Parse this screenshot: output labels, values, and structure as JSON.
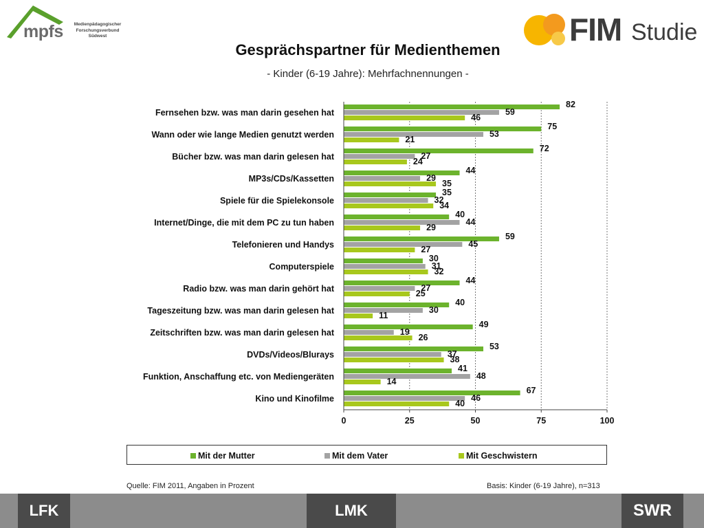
{
  "header": {
    "left_logo": {
      "name": "mpfs",
      "subtitle_lines": [
        "Medienpädagogischer",
        "Forschungsverbund",
        "Südwest"
      ]
    },
    "right_logo": {
      "name_bold": "FIM",
      "name_light": "Studie"
    }
  },
  "title": "Gesprächspartner für Medienthemen",
  "subtitle": "- Kinder (6-19 Jahre): Mehrfachnennungen -",
  "colors": {
    "mutter": "#6cb32d",
    "vater": "#a3a3a3",
    "geschwister": "#a8c81d",
    "accent_orange": "#f5a623",
    "bar_dark": "#4a4a4a"
  },
  "chart_data": {
    "type": "bar",
    "orientation": "horizontal",
    "categories": [
      "Fernsehen bzw. was man darin gesehen hat",
      "Wann oder wie lange Medien genutzt werden",
      "Bücher bzw. was man darin gelesen hat",
      "MP3s/CDs/Kassetten",
      "Spiele für die Spielekonsole",
      "Internet/Dinge, die mit dem PC zu tun haben",
      "Telefonieren und Handys",
      "Computerspiele",
      "Radio bzw. was man darin gehört hat",
      "Tageszeitung bzw. was man darin gelesen hat",
      "Zeitschriften bzw. was man darin gelesen hat",
      "DVDs/Videos/Blurays",
      "Funktion, Anschaffung etc. von Mediengeräten",
      "Kino und Kinofilme"
    ],
    "series": [
      {
        "name": "Mit der Mutter",
        "values": [
          82,
          75,
          72,
          44,
          35,
          40,
          59,
          30,
          44,
          40,
          49,
          53,
          41,
          67
        ]
      },
      {
        "name": "Mit dem Vater",
        "values": [
          59,
          53,
          27,
          29,
          32,
          44,
          45,
          31,
          27,
          30,
          19,
          37,
          48,
          46
        ]
      },
      {
        "name": "Mit Geschwistern",
        "values": [
          46,
          21,
          24,
          35,
          34,
          29,
          27,
          32,
          25,
          11,
          26,
          38,
          14,
          40
        ]
      }
    ],
    "xlim": [
      0,
      100
    ],
    "xticks": [
      "0",
      "25",
      "50",
      "75",
      "100"
    ],
    "grid": true,
    "legend_position": "bottom"
  },
  "footer": {
    "source": "Quelle: FIM 2011,  Angaben in Prozent",
    "basis": "Basis: Kinder (6-19 Jahre), n=313"
  },
  "bottom_logos": [
    "LFK",
    "LMK",
    "SWR"
  ]
}
